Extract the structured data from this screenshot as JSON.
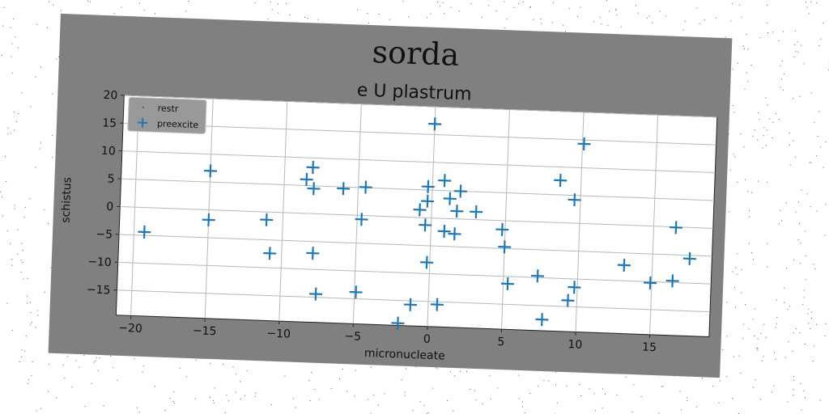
{
  "chart_data": {
    "type": "scatter",
    "suptitle": "sorda",
    "title": "e U plastrum",
    "xlabel": "micronucleate",
    "ylabel": "schistus",
    "xlim": [
      -21,
      19
    ],
    "ylim": [
      -19.5,
      20
    ],
    "xticks": [
      -20,
      -15,
      -10,
      -5,
      0,
      5,
      10,
      15
    ],
    "yticks": [
      -15,
      -10,
      -5,
      0,
      5,
      10,
      15,
      20
    ],
    "grid": true,
    "legend_position": "top-left",
    "series": [
      {
        "name": "restr",
        "marker": "point",
        "color": "#1f77b4",
        "points": []
      },
      {
        "name": "preexcite",
        "marker": "plus",
        "color": "#1f77b4",
        "points": [
          [
            0.0,
            16.9
          ],
          [
            10.1,
            14.3
          ],
          [
            -15.0,
            7.0
          ],
          [
            -8.1,
            8.3
          ],
          [
            -8.5,
            6.1
          ],
          [
            -8.0,
            4.5
          ],
          [
            -6.0,
            4.7
          ],
          [
            -4.5,
            5.1
          ],
          [
            0.8,
            6.8
          ],
          [
            -0.3,
            5.6
          ],
          [
            1.9,
            5.0
          ],
          [
            1.2,
            3.6
          ],
          [
            -0.3,
            3.0
          ],
          [
            -0.8,
            1.4
          ],
          [
            1.7,
            1.4
          ],
          [
            3.0,
            1.4
          ],
          [
            8.6,
            7.6
          ],
          [
            9.6,
            4.2
          ],
          [
            -19.3,
            -4.4
          ],
          [
            -15.0,
            -1.8
          ],
          [
            -11.1,
            -1.4
          ],
          [
            -4.7,
            -0.7
          ],
          [
            -0.4,
            -1.3
          ],
          [
            0.9,
            -2.3
          ],
          [
            1.6,
            -2.7
          ],
          [
            4.8,
            -1.6
          ],
          [
            5.0,
            -4.7
          ],
          [
            16.5,
            -0.1
          ],
          [
            17.5,
            -5.6
          ],
          [
            -10.8,
            -7.4
          ],
          [
            -7.9,
            -7.1
          ],
          [
            -0.2,
            -8.0
          ],
          [
            5.3,
            -11.3
          ],
          [
            7.3,
            -9.7
          ],
          [
            9.8,
            -11.5
          ],
          [
            9.4,
            -13.9
          ],
          [
            13.1,
            -7.2
          ],
          [
            14.9,
            -10.2
          ],
          [
            16.4,
            -9.7
          ],
          [
            -7.6,
            -14.4
          ],
          [
            -4.9,
            -13.8
          ],
          [
            -1.2,
            -15.7
          ],
          [
            0.6,
            -15.5
          ],
          [
            7.7,
            -17.5
          ],
          [
            -2.0,
            -19.1
          ]
        ]
      }
    ]
  }
}
